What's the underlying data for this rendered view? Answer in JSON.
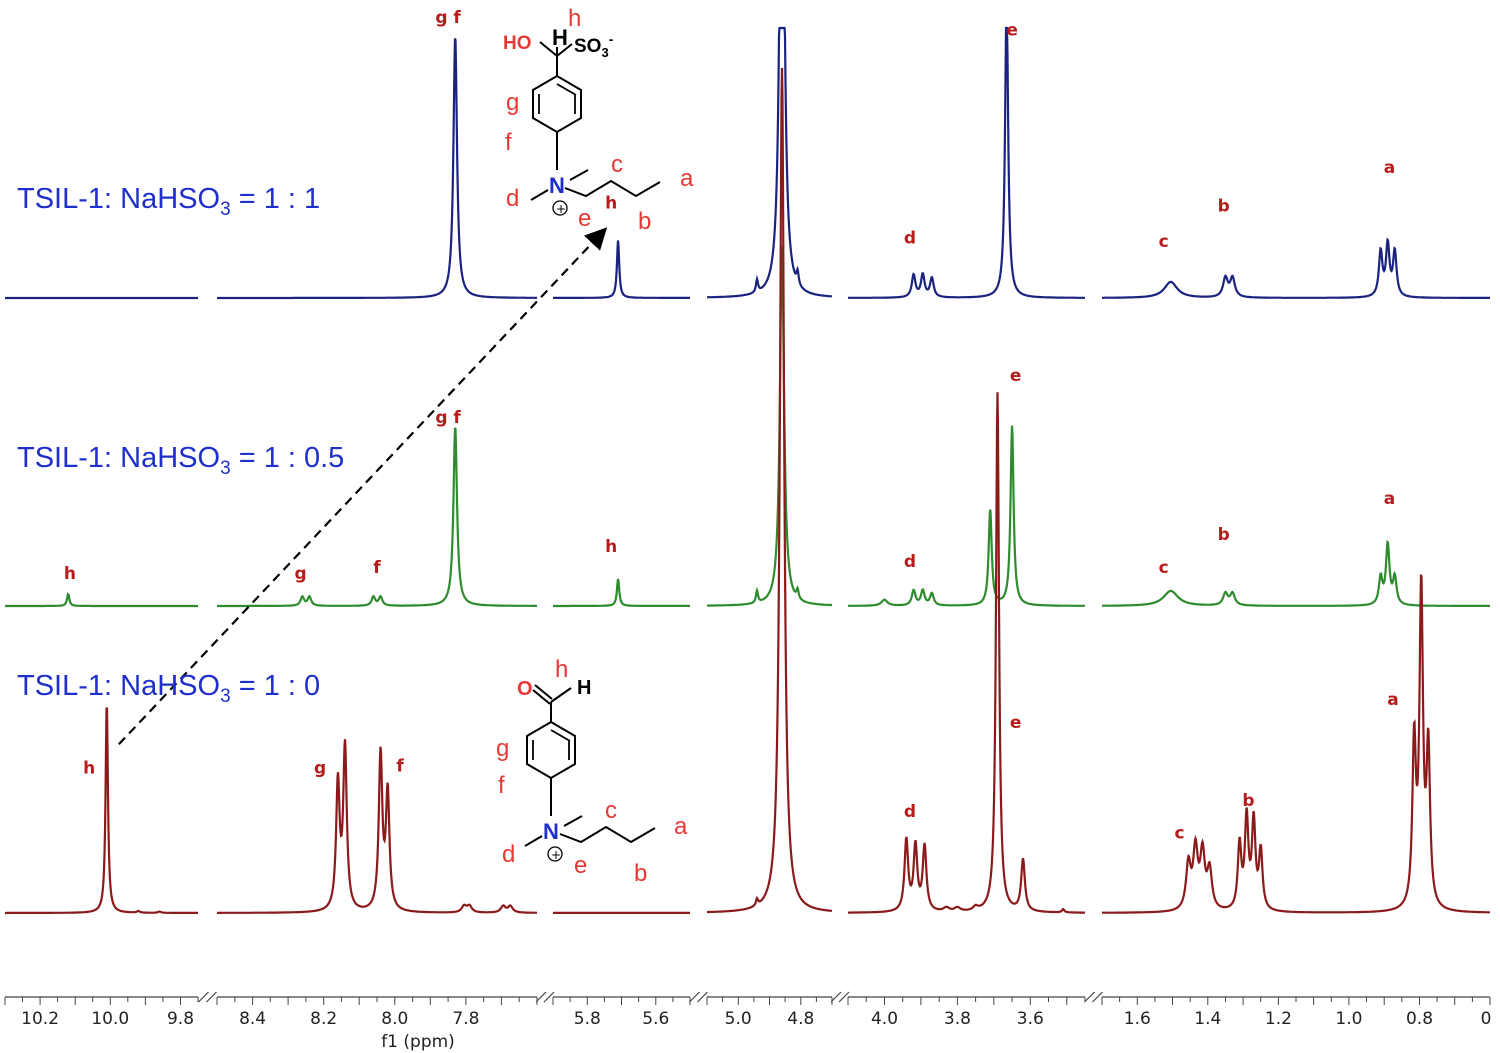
{
  "chart_data": {
    "type": "line",
    "title": "",
    "xlabel": "f1 (ppm)",
    "ylabel": "",
    "x_direction": "descending",
    "grid": false,
    "legend": "none",
    "axis_segments": [
      {
        "from": 10.3,
        "to": 9.75,
        "ticks": [
          "10.2",
          "10.0",
          "9.8"
        ]
      },
      {
        "from": 8.5,
        "to": 7.6,
        "ticks": [
          "8.4",
          "8.2",
          "8.0",
          "7.8"
        ]
      },
      {
        "from": 5.9,
        "to": 5.5,
        "ticks": [
          "5.8",
          "5.6"
        ]
      },
      {
        "from": 5.1,
        "to": 4.7,
        "ticks": [
          "5.0",
          "4.8"
        ]
      },
      {
        "from": 4.1,
        "to": 3.45,
        "ticks": [
          "4.0",
          "3.8",
          "3.6"
        ]
      },
      {
        "from": 1.7,
        "to": 0.6,
        "ticks": [
          "1.6",
          "1.4",
          "1.2",
          "1.0",
          "0.8",
          "0"
        ]
      }
    ],
    "series": [
      {
        "name": "TSIL-1: NaHSO3 = 1 : 1",
        "color": "#1a237e",
        "peaks": [
          {
            "ppm": 7.83,
            "height": 0.41,
            "label": "g f",
            "label_ppm": 7.85,
            "label_height": 0.43,
            "width": 0.006
          },
          {
            "ppm": 5.71,
            "height": 0.09,
            "label": "h",
            "label_ppm": 5.73,
            "label_height": 0.14,
            "width": 0.004
          },
          {
            "ppm": 4.86,
            "height": 1.0,
            "label": "",
            "width": 0.008
          },
          {
            "ppm": 4.94,
            "height": 0.02,
            "label": "",
            "width": 0.004
          },
          {
            "ppm": 4.81,
            "height": 0.02,
            "label": "",
            "width": 0.004
          },
          {
            "ppm": 3.92,
            "height": 0.035,
            "label": "d",
            "label_ppm": 3.93,
            "label_height": 0.085,
            "width": 0.006
          },
          {
            "ppm": 3.895,
            "height": 0.035,
            "label": "",
            "width": 0.006
          },
          {
            "ppm": 3.87,
            "height": 0.03,
            "label": "",
            "width": 0.006
          },
          {
            "ppm": 3.665,
            "height": 0.47,
            "label": "e",
            "label_ppm": 3.65,
            "label_height": 0.41,
            "width": 0.005
          },
          {
            "ppm": 1.505,
            "height": 0.025,
            "label": "c",
            "label_ppm": 1.525,
            "label_height": 0.08,
            "width": 0.022
          },
          {
            "ppm": 1.35,
            "height": 0.03,
            "label": "b",
            "label_ppm": 1.355,
            "label_height": 0.135,
            "width": 0.008
          },
          {
            "ppm": 1.33,
            "height": 0.03,
            "label": "",
            "width": 0.008
          },
          {
            "ppm": 0.89,
            "height": 0.08,
            "label": "a",
            "label_ppm": 0.885,
            "label_height": 0.195,
            "width": 0.006
          },
          {
            "ppm": 0.87,
            "height": 0.07,
            "label": "",
            "width": 0.006
          },
          {
            "ppm": 0.91,
            "height": 0.07,
            "label": "",
            "width": 0.006
          }
        ]
      },
      {
        "name": "TSIL-1: NaHSO3 = 1 : 0.5",
        "color": "#2e8b2e",
        "peaks": [
          {
            "ppm": 10.12,
            "height": 0.02,
            "label": "h",
            "label_ppm": 10.115,
            "label_height": 0.045,
            "width": 0.004
          },
          {
            "ppm": 8.26,
            "height": 0.015,
            "label": "g",
            "label_ppm": 8.265,
            "label_height": 0.045,
            "width": 0.006
          },
          {
            "ppm": 8.24,
            "height": 0.015,
            "label": "",
            "width": 0.006
          },
          {
            "ppm": 8.06,
            "height": 0.015,
            "label": "f",
            "label_ppm": 8.05,
            "label_height": 0.055,
            "width": 0.006
          },
          {
            "ppm": 8.04,
            "height": 0.015,
            "label": "",
            "width": 0.006
          },
          {
            "ppm": 7.83,
            "height": 0.3,
            "label": "g f",
            "label_ppm": 7.85,
            "label_height": 0.305,
            "width": 0.006
          },
          {
            "ppm": 5.71,
            "height": 0.045,
            "label": "h",
            "label_ppm": 5.73,
            "label_height": 0.09,
            "width": 0.004
          },
          {
            "ppm": 4.86,
            "height": 0.6,
            "label": "",
            "width": 0.008
          },
          {
            "ppm": 4.94,
            "height": 0.02,
            "label": "",
            "width": 0.004
          },
          {
            "ppm": 4.81,
            "height": 0.015,
            "label": "",
            "width": 0.004
          },
          {
            "ppm": 3.92,
            "height": 0.025,
            "label": "d",
            "label_ppm": 3.93,
            "label_height": 0.065,
            "width": 0.006
          },
          {
            "ppm": 3.895,
            "height": 0.025,
            "label": "",
            "width": 0.006
          },
          {
            "ppm": 3.87,
            "height": 0.02,
            "label": "",
            "width": 0.006
          },
          {
            "ppm": 4.0,
            "height": 0.01,
            "label": "",
            "width": 0.01
          },
          {
            "ppm": 3.71,
            "height": 0.16,
            "label": "",
            "width": 0.005
          },
          {
            "ppm": 3.65,
            "height": 0.3,
            "label": "e",
            "label_ppm": 3.64,
            "label_height": 0.375,
            "width": 0.005
          },
          {
            "ppm": 1.505,
            "height": 0.025,
            "label": "c",
            "label_ppm": 1.525,
            "label_height": 0.055,
            "width": 0.025
          },
          {
            "ppm": 1.35,
            "height": 0.02,
            "label": "b",
            "label_ppm": 1.355,
            "label_height": 0.11,
            "width": 0.008
          },
          {
            "ppm": 1.33,
            "height": 0.02,
            "label": "",
            "width": 0.008
          },
          {
            "ppm": 0.89,
            "height": 0.1,
            "label": "a",
            "label_ppm": 0.885,
            "label_height": 0.17,
            "width": 0.006
          },
          {
            "ppm": 0.87,
            "height": 0.045,
            "label": "",
            "width": 0.006
          },
          {
            "ppm": 0.91,
            "height": 0.045,
            "label": "",
            "width": 0.006
          }
        ]
      },
      {
        "name": "TSIL-1: NaHSO3 = 1 : 0",
        "color": "#8b1a1a",
        "peaks": [
          {
            "ppm": 10.01,
            "height": 0.65,
            "label": "h",
            "label_ppm": 10.06,
            "label_height": 0.43,
            "width": 0.004
          },
          {
            "ppm": 9.92,
            "height": 0.005,
            "label": "",
            "width": 0.005
          },
          {
            "ppm": 9.86,
            "height": 0.004,
            "label": "",
            "width": 0.005
          },
          {
            "ppm": 8.16,
            "height": 0.39,
            "label": "g",
            "label_ppm": 8.21,
            "label_height": 0.43,
            "width": 0.006
          },
          {
            "ppm": 8.14,
            "height": 0.5,
            "label": "",
            "width": 0.006
          },
          {
            "ppm": 8.04,
            "height": 0.48,
            "label": "",
            "width": 0.006
          },
          {
            "ppm": 8.02,
            "height": 0.36,
            "label": "f",
            "label_ppm": 7.985,
            "label_height": 0.435,
            "width": 0.006
          },
          {
            "ppm": 7.805,
            "height": 0.02,
            "label": "",
            "width": 0.008
          },
          {
            "ppm": 7.79,
            "height": 0.02,
            "label": "",
            "width": 0.008
          },
          {
            "ppm": 7.695,
            "height": 0.02,
            "label": "",
            "width": 0.008
          },
          {
            "ppm": 7.675,
            "height": 0.02,
            "label": "",
            "width": 0.008
          },
          {
            "ppm": 4.86,
            "height": 2.6,
            "label": "",
            "width": 0.008
          },
          {
            "ppm": 4.94,
            "height": 0.02,
            "label": "",
            "width": 0.004
          },
          {
            "ppm": 3.94,
            "height": 0.22,
            "label": "d",
            "label_ppm": 3.93,
            "label_height": 0.295,
            "width": 0.006
          },
          {
            "ppm": 3.915,
            "height": 0.2,
            "label": "",
            "width": 0.006
          },
          {
            "ppm": 3.89,
            "height": 0.2,
            "label": "",
            "width": 0.006
          },
          {
            "ppm": 3.83,
            "height": 0.012,
            "label": "",
            "width": 0.01
          },
          {
            "ppm": 3.8,
            "height": 0.012,
            "label": "",
            "width": 0.01
          },
          {
            "ppm": 3.75,
            "height": 0.012,
            "label": "",
            "width": 0.008
          },
          {
            "ppm": 3.69,
            "height": 1.6,
            "label": "e",
            "label_ppm": 3.64,
            "label_height": 0.57,
            "width": 0.005
          },
          {
            "ppm": 3.62,
            "height": 0.16,
            "label": "",
            "width": 0.006
          },
          {
            "ppm": 3.51,
            "height": 0.01,
            "label": "",
            "width": 0.004
          },
          {
            "ppm": 1.455,
            "height": 0.14,
            "label": "c",
            "label_ppm": 1.48,
            "label_height": 0.23,
            "width": 0.008
          },
          {
            "ppm": 1.435,
            "height": 0.18,
            "label": "",
            "width": 0.008
          },
          {
            "ppm": 1.415,
            "height": 0.17,
            "label": "",
            "width": 0.008
          },
          {
            "ppm": 1.395,
            "height": 0.12,
            "label": "",
            "width": 0.008
          },
          {
            "ppm": 1.31,
            "height": 0.2,
            "label": "",
            "width": 0.006
          },
          {
            "ppm": 1.29,
            "height": 0.28,
            "label": "b",
            "label_ppm": 1.285,
            "label_height": 0.33,
            "width": 0.006
          },
          {
            "ppm": 1.27,
            "height": 0.27,
            "label": "",
            "width": 0.006
          },
          {
            "ppm": 1.25,
            "height": 0.18,
            "label": "",
            "width": 0.006
          },
          {
            "ppm": 0.815,
            "height": 0.5,
            "label": "",
            "width": 0.006
          },
          {
            "ppm": 0.795,
            "height": 0.97,
            "label": "a",
            "label_ppm": 0.875,
            "label_height": 0.64,
            "width": 0.006
          },
          {
            "ppm": 0.775,
            "height": 0.48,
            "label": "",
            "width": 0.006
          }
        ]
      }
    ],
    "annotations": [
      {
        "text": "h",
        "kind": "arrow",
        "from_ppm": 10.01,
        "from_series": 2,
        "to_ppm": 5.71,
        "to_series": 0
      }
    ]
  },
  "structures": [
    {
      "name": "product-hydroxysulfonate",
      "labels": {
        "h": "h",
        "H": "H",
        "HO": "HO",
        "SO3": "SO",
        "sub3": "3",
        "sup_minus": "-",
        "g": "g",
        "f": "f",
        "N": "N",
        "plus": "+",
        "c": "c",
        "a": "a",
        "d": "d",
        "e": "e",
        "b": "b"
      }
    },
    {
      "name": "reactant-aldehyde",
      "labels": {
        "O": "O",
        "h": "h",
        "H": "H",
        "g": "g",
        "f": "f",
        "N": "N",
        "plus": "+",
        "c": "c",
        "a": "a",
        "d": "d",
        "e": "e",
        "b": "b"
      }
    }
  ]
}
